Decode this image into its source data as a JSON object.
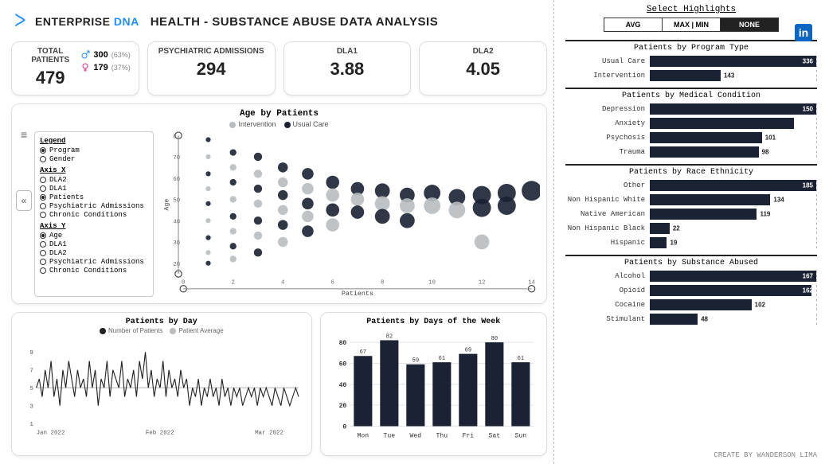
{
  "brand": {
    "name_a": "ENTERPRISE",
    "name_b": "DNA"
  },
  "title": "HEALTH - SUBSTANCE ABUSE DATA ANALYSIS",
  "cards": {
    "total_patients": {
      "label": "TOTAL PATIENTS",
      "value": "479",
      "male": {
        "value": "300",
        "pct": "(63%)",
        "color": "#1e90ff"
      },
      "female": {
        "value": "179",
        "pct": "(37%)",
        "color": "#d63384"
      }
    },
    "psych": {
      "label": "PSYCHIATRIC ADMISSIONS",
      "value": "294"
    },
    "dla1": {
      "label": "DLA1",
      "value": "3.88"
    },
    "dla2": {
      "label": "DLA2",
      "value": "4.05"
    }
  },
  "scatter": {
    "title": "Age by Patients",
    "legend": {
      "intervention": {
        "label": "Intervention",
        "color": "#b9bcc0"
      },
      "usual": {
        "label": "Usual Care",
        "color": "#1a2233"
      }
    },
    "x_axis_label": "Patients",
    "y_axis_label": "Age",
    "ylim": [
      15,
      80
    ],
    "yticks": [
      20,
      30,
      40,
      50,
      60,
      70,
      80
    ],
    "xlim": [
      0,
      14
    ],
    "xticks": [
      0,
      2,
      4,
      6,
      8,
      10,
      12,
      14
    ],
    "options": {
      "Legend": {
        "items": [
          "Program",
          "Gender"
        ],
        "selected": "Program"
      },
      "Axis X": {
        "items": [
          "DLA2",
          "DLA1",
          "Patients",
          "Psychiatric Admissions",
          "Chronic Conditions"
        ],
        "selected": "Patients"
      },
      "Axis Y": {
        "items": [
          "Age",
          "DLA1",
          "DLA2",
          "Psychiatric Admissions",
          "Chronic Conditions"
        ],
        "selected": "Age"
      }
    },
    "bubbles": [
      {
        "x": 1,
        "y": 78,
        "r": 3,
        "c": "usual"
      },
      {
        "x": 1,
        "y": 70,
        "r": 3,
        "c": "intervention"
      },
      {
        "x": 1,
        "y": 62,
        "r": 3,
        "c": "usual"
      },
      {
        "x": 1,
        "y": 55,
        "r": 3,
        "c": "intervention"
      },
      {
        "x": 1,
        "y": 48,
        "r": 3,
        "c": "usual"
      },
      {
        "x": 1,
        "y": 40,
        "r": 3,
        "c": "intervention"
      },
      {
        "x": 1,
        "y": 32,
        "r": 3,
        "c": "usual"
      },
      {
        "x": 1,
        "y": 25,
        "r": 3,
        "c": "intervention"
      },
      {
        "x": 1,
        "y": 20,
        "r": 3,
        "c": "usual"
      },
      {
        "x": 2,
        "y": 72,
        "r": 4,
        "c": "usual"
      },
      {
        "x": 2,
        "y": 65,
        "r": 4,
        "c": "intervention"
      },
      {
        "x": 2,
        "y": 58,
        "r": 4,
        "c": "usual"
      },
      {
        "x": 2,
        "y": 50,
        "r": 4,
        "c": "intervention"
      },
      {
        "x": 2,
        "y": 42,
        "r": 4,
        "c": "usual"
      },
      {
        "x": 2,
        "y": 35,
        "r": 4,
        "c": "intervention"
      },
      {
        "x": 2,
        "y": 28,
        "r": 4,
        "c": "usual"
      },
      {
        "x": 2,
        "y": 22,
        "r": 4,
        "c": "intervention"
      },
      {
        "x": 3,
        "y": 70,
        "r": 5,
        "c": "usual"
      },
      {
        "x": 3,
        "y": 62,
        "r": 5,
        "c": "intervention"
      },
      {
        "x": 3,
        "y": 55,
        "r": 5,
        "c": "usual"
      },
      {
        "x": 3,
        "y": 48,
        "r": 5,
        "c": "intervention"
      },
      {
        "x": 3,
        "y": 40,
        "r": 5,
        "c": "usual"
      },
      {
        "x": 3,
        "y": 33,
        "r": 5,
        "c": "intervention"
      },
      {
        "x": 3,
        "y": 25,
        "r": 5,
        "c": "usual"
      },
      {
        "x": 4,
        "y": 65,
        "r": 6,
        "c": "usual"
      },
      {
        "x": 4,
        "y": 58,
        "r": 6,
        "c": "intervention"
      },
      {
        "x": 4,
        "y": 52,
        "r": 6,
        "c": "usual"
      },
      {
        "x": 4,
        "y": 45,
        "r": 6,
        "c": "intervention"
      },
      {
        "x": 4,
        "y": 38,
        "r": 6,
        "c": "usual"
      },
      {
        "x": 4,
        "y": 30,
        "r": 6,
        "c": "intervention"
      },
      {
        "x": 5,
        "y": 62,
        "r": 7,
        "c": "usual"
      },
      {
        "x": 5,
        "y": 55,
        "r": 7,
        "c": "intervention"
      },
      {
        "x": 5,
        "y": 48,
        "r": 7,
        "c": "usual"
      },
      {
        "x": 5,
        "y": 42,
        "r": 7,
        "c": "intervention"
      },
      {
        "x": 5,
        "y": 35,
        "r": 7,
        "c": "usual"
      },
      {
        "x": 6,
        "y": 58,
        "r": 8,
        "c": "usual"
      },
      {
        "x": 6,
        "y": 52,
        "r": 8,
        "c": "intervention"
      },
      {
        "x": 6,
        "y": 45,
        "r": 8,
        "c": "usual"
      },
      {
        "x": 6,
        "y": 38,
        "r": 8,
        "c": "intervention"
      },
      {
        "x": 7,
        "y": 55,
        "r": 8,
        "c": "usual"
      },
      {
        "x": 7,
        "y": 50,
        "r": 8,
        "c": "intervention"
      },
      {
        "x": 7,
        "y": 44,
        "r": 8,
        "c": "usual"
      },
      {
        "x": 8,
        "y": 54,
        "r": 9,
        "c": "usual"
      },
      {
        "x": 8,
        "y": 48,
        "r": 9,
        "c": "intervention"
      },
      {
        "x": 8,
        "y": 42,
        "r": 9,
        "c": "usual"
      },
      {
        "x": 9,
        "y": 52,
        "r": 9,
        "c": "usual"
      },
      {
        "x": 9,
        "y": 47,
        "r": 9,
        "c": "intervention"
      },
      {
        "x": 9,
        "y": 40,
        "r": 9,
        "c": "usual"
      },
      {
        "x": 10,
        "y": 53,
        "r": 10,
        "c": "usual"
      },
      {
        "x": 10,
        "y": 47,
        "r": 10,
        "c": "intervention"
      },
      {
        "x": 11,
        "y": 51,
        "r": 10,
        "c": "usual"
      },
      {
        "x": 11,
        "y": 45,
        "r": 10,
        "c": "intervention"
      },
      {
        "x": 12,
        "y": 52,
        "r": 11,
        "c": "usual"
      },
      {
        "x": 12,
        "y": 46,
        "r": 11,
        "c": "usual"
      },
      {
        "x": 12,
        "y": 30,
        "r": 9,
        "c": "intervention"
      },
      {
        "x": 13,
        "y": 53,
        "r": 11,
        "c": "usual"
      },
      {
        "x": 13,
        "y": 47,
        "r": 11,
        "c": "usual"
      },
      {
        "x": 14,
        "y": 54,
        "r": 12,
        "c": "usual"
      }
    ]
  },
  "byday": {
    "title": "Patients by Day",
    "legend": {
      "patients": {
        "label": "Number of Patients",
        "color": "#222"
      },
      "avg": {
        "label": "Patient Average",
        "color": "#bbb"
      }
    },
    "ylim": [
      1,
      9
    ],
    "yticks": [
      1,
      3,
      5,
      7,
      9
    ],
    "xticks": [
      "Jan 2022",
      "Feb 2022",
      "Mar 2022"
    ],
    "avg": 5,
    "series": [
      5,
      6,
      4,
      7,
      5,
      8,
      4,
      6,
      3,
      7,
      5,
      8,
      6,
      4,
      7,
      5,
      6,
      4,
      8,
      5,
      7,
      3,
      6,
      5,
      8,
      4,
      7,
      6,
      5,
      8,
      4,
      6,
      5,
      7,
      4,
      8,
      6,
      9,
      5,
      7,
      4,
      6,
      5,
      8,
      4,
      7,
      5,
      6,
      4,
      7,
      5,
      6,
      3,
      5,
      4,
      6,
      3,
      5,
      4,
      6,
      4,
      5,
      3,
      6,
      4,
      5,
      3,
      5,
      4,
      5,
      3,
      4,
      5,
      4,
      5,
      3,
      5,
      4,
      5,
      4,
      3,
      5,
      4,
      3,
      5,
      4,
      3,
      4,
      5,
      4
    ]
  },
  "bydow": {
    "title": "Patients by Days of the Week",
    "ylim": [
      0,
      80
    ],
    "yticks": [
      0,
      20,
      40,
      60,
      80
    ],
    "bars": [
      {
        "label": "Mon",
        "value": 67
      },
      {
        "label": "Tue",
        "value": 82
      },
      {
        "label": "Wed",
        "value": 59
      },
      {
        "label": "Thu",
        "value": 61
      },
      {
        "label": "Fri",
        "value": 69
      },
      {
        "label": "Sat",
        "value": 80
      },
      {
        "label": "Sun",
        "value": 61
      }
    ],
    "bar_color": "#1a2233",
    "grid_color": "#e5e5e5"
  },
  "highlights": {
    "title": "Select Highlights",
    "options": [
      "AVG",
      "MAX | MIN",
      "NONE"
    ],
    "selected": "NONE"
  },
  "right_groups": [
    {
      "title": "Patients by Program Type",
      "max": 336,
      "bars": [
        {
          "label": "Usual Care",
          "value": 336
        },
        {
          "label": "Intervention",
          "value": 143
        }
      ]
    },
    {
      "title": "Patients by Medical Condition",
      "max": 150,
      "bars": [
        {
          "label": "Depression",
          "value": 150
        },
        {
          "label": "Anxiety",
          "value": 130
        },
        {
          "label": "Psychosis",
          "value": 101
        },
        {
          "label": "Trauma",
          "value": 98
        }
      ]
    },
    {
      "title": "Patients by Race Ethnicity",
      "max": 185,
      "bars": [
        {
          "label": "Other",
          "value": 185
        },
        {
          "label": "Non Hispanic White",
          "value": 134
        },
        {
          "label": "Native American",
          "value": 119
        },
        {
          "label": "Non Hispanic Black",
          "value": 22
        },
        {
          "label": "Hispanic",
          "value": 19
        }
      ]
    },
    {
      "title": "Patients by Substance Abused",
      "max": 167,
      "bars": [
        {
          "label": "Alcohol",
          "value": 167
        },
        {
          "label": "Opioid",
          "value": 162
        },
        {
          "label": "Cocaine",
          "value": 102
        },
        {
          "label": "Stimulant",
          "value": 48
        }
      ]
    }
  ],
  "credit": "CREATE BY WANDERSON LIMA",
  "bar_color": "#1a2233"
}
